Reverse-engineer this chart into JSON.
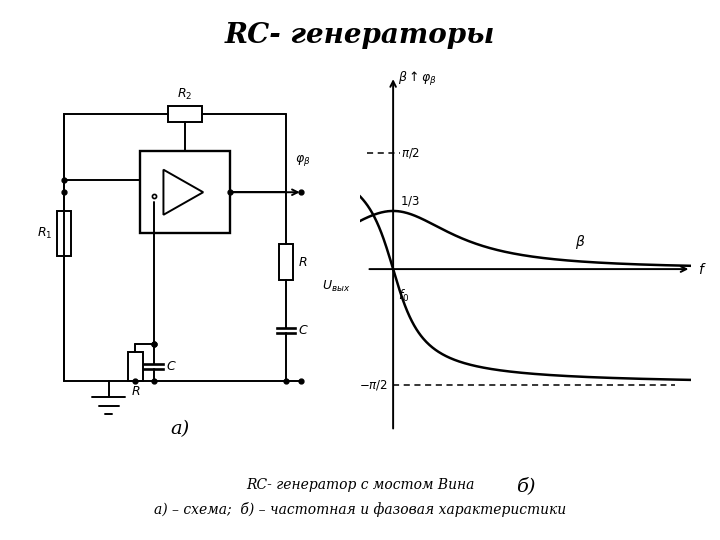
{
  "title": "RC- генераторы",
  "title_fontsize": 20,
  "caption_line1": "RC- генератор с мостом Вина",
  "caption_line2": "а) – схема;  б) – частотная и фазовая характеристики",
  "label_a": "а)",
  "label_b": "б)",
  "bg_color": "#ffffff"
}
